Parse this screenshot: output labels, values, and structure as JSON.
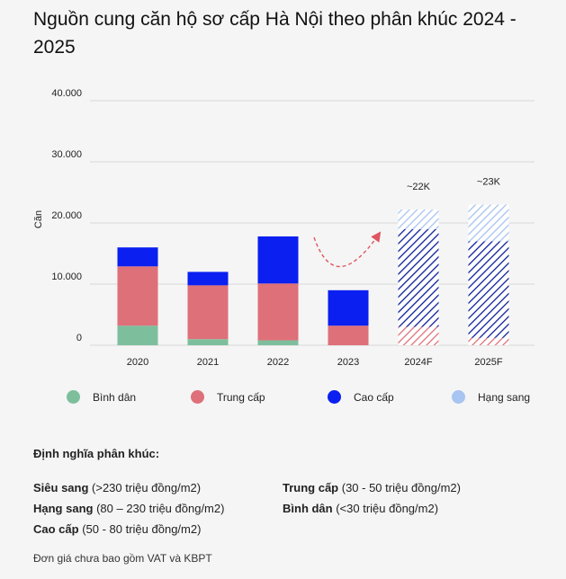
{
  "title": "Nguồn cung căn hộ sơ cấp Hà Nội theo phân khúc 2024 - 2025",
  "chart_data": {
    "type": "bar",
    "stacked": true,
    "ylabel": "Căn",
    "ylim": [
      0,
      40000
    ],
    "yticks": [
      "0",
      "10.000",
      "20.000",
      "30.000",
      "40.000"
    ],
    "ytick_values": [
      0,
      10000,
      20000,
      30000,
      40000
    ],
    "categories": [
      "2020",
      "2021",
      "2022",
      "2023",
      "2024F",
      "2025F"
    ],
    "forecast": [
      false,
      false,
      false,
      false,
      true,
      true
    ],
    "series": [
      {
        "name": "Bình dân",
        "color": "#7dbf9c",
        "values": [
          3200,
          1000,
          800,
          0,
          0,
          0
        ]
      },
      {
        "name": "Trung cấp",
        "color": "#de7079",
        "values": [
          9700,
          8800,
          9300,
          3200,
          3000,
          1200
        ]
      },
      {
        "name": "Cao cấp",
        "color": "#0a1ff0",
        "values": [
          3100,
          2200,
          7700,
          5800,
          16000,
          15800
        ]
      },
      {
        "name": "Hạng sang",
        "color": "#a8c4f0",
        "values": [
          0,
          0,
          0,
          0,
          3200,
          6000
        ]
      }
    ],
    "bar_labels": [
      "",
      "",
      "",
      "",
      "~22K",
      "~23K"
    ]
  },
  "definitions": {
    "heading": "Định nghĩa phân khúc:",
    "items": [
      {
        "name": "Siêu sang",
        "range": "(>230 triệu đồng/m2)"
      },
      {
        "name": "Hạng sang",
        "range": "(80 – 230 triệu đồng/m2)"
      },
      {
        "name": "Cao cấp",
        "range": "(50 - 80 triệu đồng/m2)"
      },
      {
        "name": "Trung cấp",
        "range": "(30 - 50 triệu đồng/m2)"
      },
      {
        "name": "Bình dân",
        "range": "(<30 triệu đồng/m2)"
      }
    ]
  },
  "footnote": "Đơn giá chưa bao gồm VAT và KBPT"
}
